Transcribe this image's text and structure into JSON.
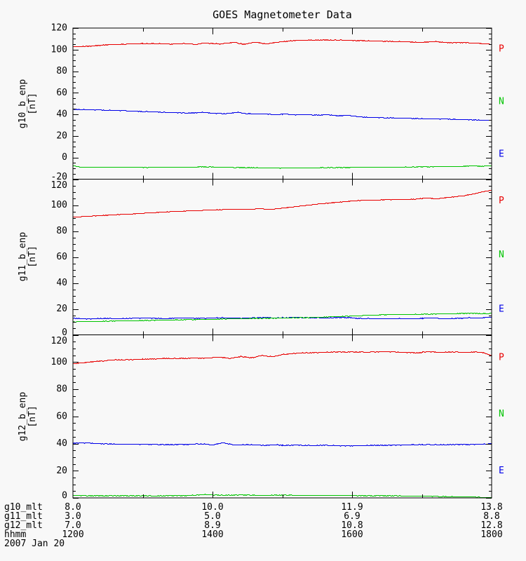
{
  "title": "GOES Magnetometer Data",
  "colors": {
    "P": "#e80000",
    "N": "#00c400",
    "E": "#0000e8",
    "axis": "#000000",
    "background": "#f8f8f8"
  },
  "chart_data": {
    "type": "line",
    "title": "GOES Magnetometer Data",
    "x_axis": {
      "unit": "hhmm",
      "range_hours": [
        12,
        18
      ],
      "major_ticks_hhmm": [
        "1200",
        "1400",
        "1600",
        "1800"
      ],
      "minor_tick_every_hours": 1,
      "date": "2007 Jan 20"
    },
    "legend_labels": [
      "P",
      "N",
      "E"
    ],
    "panels": [
      {
        "name": "g10_b_enp",
        "unit": "[nT]",
        "ylim": [
          -20,
          120
        ],
        "ytick_step": 20,
        "yminor_step": 5,
        "yticks": [
          -20,
          0,
          20,
          40,
          60,
          80,
          100,
          120
        ],
        "series": [
          {
            "name": "P",
            "color": "#e80000",
            "jitter": 0.55,
            "points": [
              [
                12,
                103
              ],
              [
                12.2,
                103.4
              ],
              [
                12.5,
                104.8
              ],
              [
                12.8,
                105.6
              ],
              [
                13.1,
                106
              ],
              [
                13.4,
                105.5
              ],
              [
                13.6,
                106
              ],
              [
                13.75,
                105.2
              ],
              [
                13.9,
                106.4
              ],
              [
                14.1,
                105.6
              ],
              [
                14.3,
                107
              ],
              [
                14.45,
                105.2
              ],
              [
                14.6,
                107.4
              ],
              [
                14.75,
                105.6
              ],
              [
                14.9,
                107
              ],
              [
                15.1,
                108.4
              ],
              [
                15.3,
                109
              ],
              [
                15.6,
                109.3
              ],
              [
                15.9,
                109
              ],
              [
                16.2,
                108.5
              ],
              [
                16.5,
                108
              ],
              [
                16.8,
                107.5
              ],
              [
                17.0,
                107
              ],
              [
                17.2,
                107.8
              ],
              [
                17.4,
                106.6
              ],
              [
                17.6,
                106.9
              ],
              [
                17.8,
                106.2
              ],
              [
                17.95,
                105.6
              ],
              [
                18,
                104.8
              ]
            ]
          },
          {
            "name": "N",
            "color": "#00c400",
            "jitter": 0.4,
            "points": [
              [
                12,
                -7.4
              ],
              [
                12.1,
                -8.5
              ],
              [
                12.5,
                -8.7
              ],
              [
                13,
                -8.8
              ],
              [
                13.5,
                -8.7
              ],
              [
                13.9,
                -8.3
              ],
              [
                14.2,
                -8.8
              ],
              [
                14.6,
                -9
              ],
              [
                15,
                -9.5
              ],
              [
                15.3,
                -9.2
              ],
              [
                15.7,
                -9
              ],
              [
                16,
                -8.8
              ],
              [
                16.5,
                -8.6
              ],
              [
                17,
                -8.3
              ],
              [
                17.5,
                -8
              ],
              [
                17.75,
                -7.3
              ],
              [
                17.85,
                -7.8
              ],
              [
                18,
                -7.2
              ]
            ]
          },
          {
            "name": "E",
            "color": "#0000e8",
            "jitter": 0.5,
            "points": [
              [
                12,
                45
              ],
              [
                12.3,
                44.5
              ],
              [
                12.6,
                44
              ],
              [
                13,
                43
              ],
              [
                13.4,
                42
              ],
              [
                13.7,
                41.5
              ],
              [
                13.85,
                42.3
              ],
              [
                14,
                41.3
              ],
              [
                14.2,
                41
              ],
              [
                14.35,
                42.4
              ],
              [
                14.5,
                41
              ],
              [
                14.7,
                40.8
              ],
              [
                14.9,
                40
              ],
              [
                15.05,
                40.8
              ],
              [
                15.2,
                39.8
              ],
              [
                15.35,
                40.4
              ],
              [
                15.5,
                39.5
              ],
              [
                15.65,
                40.1
              ],
              [
                15.8,
                39
              ],
              [
                15.95,
                39.4
              ],
              [
                16.1,
                38
              ],
              [
                16.3,
                37.5
              ],
              [
                16.6,
                37
              ],
              [
                17,
                36.4
              ],
              [
                17.4,
                35.9
              ],
              [
                17.7,
                35.4
              ],
              [
                18,
                34.8
              ]
            ]
          }
        ]
      },
      {
        "name": "g11_b_enp",
        "unit": "[nT]",
        "ylim": [
          0,
          120
        ],
        "ytick_step": 20,
        "yminor_step": 5,
        "yticks": [
          0,
          20,
          40,
          60,
          80,
          100,
          120
        ],
        "series": [
          {
            "name": "P",
            "color": "#e80000",
            "jitter": 0.3,
            "points": [
              [
                12,
                91
              ],
              [
                12.5,
                92.5
              ],
              [
                13,
                94
              ],
              [
                13.5,
                95.5
              ],
              [
                14,
                96.5
              ],
              [
                14.3,
                97.2
              ],
              [
                14.5,
                96.8
              ],
              [
                14.65,
                97.5
              ],
              [
                14.8,
                96.9
              ],
              [
                15,
                98
              ],
              [
                15.3,
                99.8
              ],
              [
                15.6,
                101.5
              ],
              [
                15.9,
                103
              ],
              [
                16.1,
                103.8
              ],
              [
                16.4,
                104.3
              ],
              [
                16.7,
                104.6
              ],
              [
                16.9,
                104.8
              ],
              [
                17.05,
                105.8
              ],
              [
                17.2,
                105.1
              ],
              [
                17.35,
                106
              ],
              [
                17.6,
                107.5
              ],
              [
                17.8,
                109.5
              ],
              [
                17.9,
                111
              ],
              [
                18,
                111.8
              ]
            ]
          },
          {
            "name": "N",
            "color": "#00c400",
            "jitter": 0.35,
            "points": [
              [
                12,
                10.3
              ],
              [
                12.5,
                10.8
              ],
              [
                13,
                11.3
              ],
              [
                13.5,
                11.8
              ],
              [
                14,
                12.3
              ],
              [
                14.5,
                12.8
              ],
              [
                15,
                13.2
              ],
              [
                15.5,
                13.8
              ],
              [
                16,
                14.8
              ],
              [
                16.3,
                15.5
              ],
              [
                16.6,
                15.9
              ],
              [
                16.9,
                16.1
              ],
              [
                17.2,
                16.3
              ],
              [
                17.5,
                16.6
              ],
              [
                17.7,
                16.9
              ],
              [
                17.85,
                16.6
              ],
              [
                18,
                16.8
              ]
            ]
          },
          {
            "name": "E",
            "color": "#0000e8",
            "jitter": 0.45,
            "points": [
              [
                12,
                13
              ],
              [
                12.2,
                12.5
              ],
              [
                12.4,
                13
              ],
              [
                12.7,
                12.8
              ],
              [
                13,
                13.2
              ],
              [
                13.3,
                12.9
              ],
              [
                13.6,
                13.3
              ],
              [
                13.9,
                13
              ],
              [
                14.1,
                13.4
              ],
              [
                14.4,
                13.1
              ],
              [
                14.7,
                13.5
              ],
              [
                15,
                13.3
              ],
              [
                15.2,
                14
              ],
              [
                15.35,
                13.4
              ],
              [
                15.6,
                13.3
              ],
              [
                15.9,
                13.6
              ],
              [
                16.1,
                12.9
              ],
              [
                16.3,
                12.7
              ],
              [
                16.6,
                12.8
              ],
              [
                16.9,
                12.6
              ],
              [
                17.1,
                13.2
              ],
              [
                17.3,
                12.7
              ],
              [
                17.5,
                13
              ],
              [
                17.7,
                13.4
              ],
              [
                17.85,
                13.2
              ],
              [
                18,
                14
              ]
            ]
          }
        ]
      },
      {
        "name": "g12_b_enp",
        "unit": "[nT]",
        "ylim": [
          0,
          120
        ],
        "ytick_step": 20,
        "yminor_step": 5,
        "yticks": [
          0,
          20,
          40,
          60,
          80,
          100,
          120
        ],
        "series": [
          {
            "name": "P",
            "color": "#e80000",
            "jitter": 0.5,
            "points": [
              [
                12,
                99
              ],
              [
                12.3,
                100.5
              ],
              [
                12.6,
                101.8
              ],
              [
                13,
                102.3
              ],
              [
                13.3,
                102.8
              ],
              [
                13.6,
                102.9
              ],
              [
                13.9,
                103.2
              ],
              [
                14.1,
                103.8
              ],
              [
                14.25,
                102.9
              ],
              [
                14.4,
                104.3
              ],
              [
                14.55,
                103.2
              ],
              [
                14.7,
                105
              ],
              [
                14.85,
                104.1
              ],
              [
                15,
                105.8
              ],
              [
                15.2,
                106.8
              ],
              [
                15.5,
                107.3
              ],
              [
                15.8,
                107.6
              ],
              [
                16.1,
                107.5
              ],
              [
                16.4,
                107.8
              ],
              [
                16.7,
                107.4
              ],
              [
                16.95,
                107
              ],
              [
                17.1,
                108
              ],
              [
                17.25,
                107.2
              ],
              [
                17.45,
                107.8
              ],
              [
                17.6,
                107.3
              ],
              [
                17.75,
                107.6
              ],
              [
                17.9,
                106.8
              ],
              [
                18,
                104.8
              ]
            ]
          },
          {
            "name": "N",
            "color": "#00c400",
            "jitter": 0.4,
            "points": [
              [
                12,
                2
              ],
              [
                12.4,
                1.8
              ],
              [
                12.8,
                1.9
              ],
              [
                13.2,
                1.7
              ],
              [
                13.6,
                1.9
              ],
              [
                13.9,
                2.8
              ],
              [
                14.1,
                2.2
              ],
              [
                14.4,
                2.4
              ],
              [
                14.7,
                2.1
              ],
              [
                15,
                2.3
              ],
              [
                15.4,
                2
              ],
              [
                15.8,
                2.1
              ],
              [
                16.2,
                1.9
              ],
              [
                16.6,
                1.8
              ],
              [
                17,
                1.5
              ],
              [
                17.4,
                1.2
              ],
              [
                17.7,
                0.9
              ],
              [
                18,
                0.6
              ]
            ]
          },
          {
            "name": "E",
            "color": "#0000e8",
            "jitter": 0.5,
            "points": [
              [
                12,
                40.5
              ],
              [
                12.2,
                40.7
              ],
              [
                12.4,
                40
              ],
              [
                12.7,
                39.8
              ],
              [
                13,
                39.7
              ],
              [
                13.3,
                39.5
              ],
              [
                13.6,
                39.6
              ],
              [
                13.85,
                40
              ],
              [
                14,
                39.3
              ],
              [
                14.15,
                40.8
              ],
              [
                14.3,
                39.2
              ],
              [
                14.5,
                39.5
              ],
              [
                14.7,
                38.9
              ],
              [
                14.9,
                39.4
              ],
              [
                15.05,
                38.8
              ],
              [
                15.2,
                39.2
              ],
              [
                15.4,
                38.7
              ],
              [
                15.6,
                39
              ],
              [
                15.9,
                38.6
              ],
              [
                16.2,
                38.8
              ],
              [
                16.5,
                39
              ],
              [
                16.8,
                39.2
              ],
              [
                17.1,
                39.5
              ],
              [
                17.4,
                39.4
              ],
              [
                17.7,
                39.7
              ],
              [
                17.9,
                39.8
              ],
              [
                18,
                40.3
              ]
            ]
          }
        ]
      }
    ],
    "bottom_rows": [
      {
        "label": "g10_mlt",
        "values": [
          "8.0",
          "10.0",
          "11.9",
          "13.8"
        ]
      },
      {
        "label": "g11_mlt",
        "values": [
          "3.0",
          "5.0",
          "6.9",
          "8.8"
        ]
      },
      {
        "label": "g12_mlt",
        "values": [
          "7.0",
          "8.9",
          "10.8",
          "12.8"
        ]
      },
      {
        "label": "hhmm",
        "values": [
          "1200",
          "1400",
          "1600",
          "1800"
        ]
      }
    ],
    "date_label": "2007 Jan 20"
  }
}
